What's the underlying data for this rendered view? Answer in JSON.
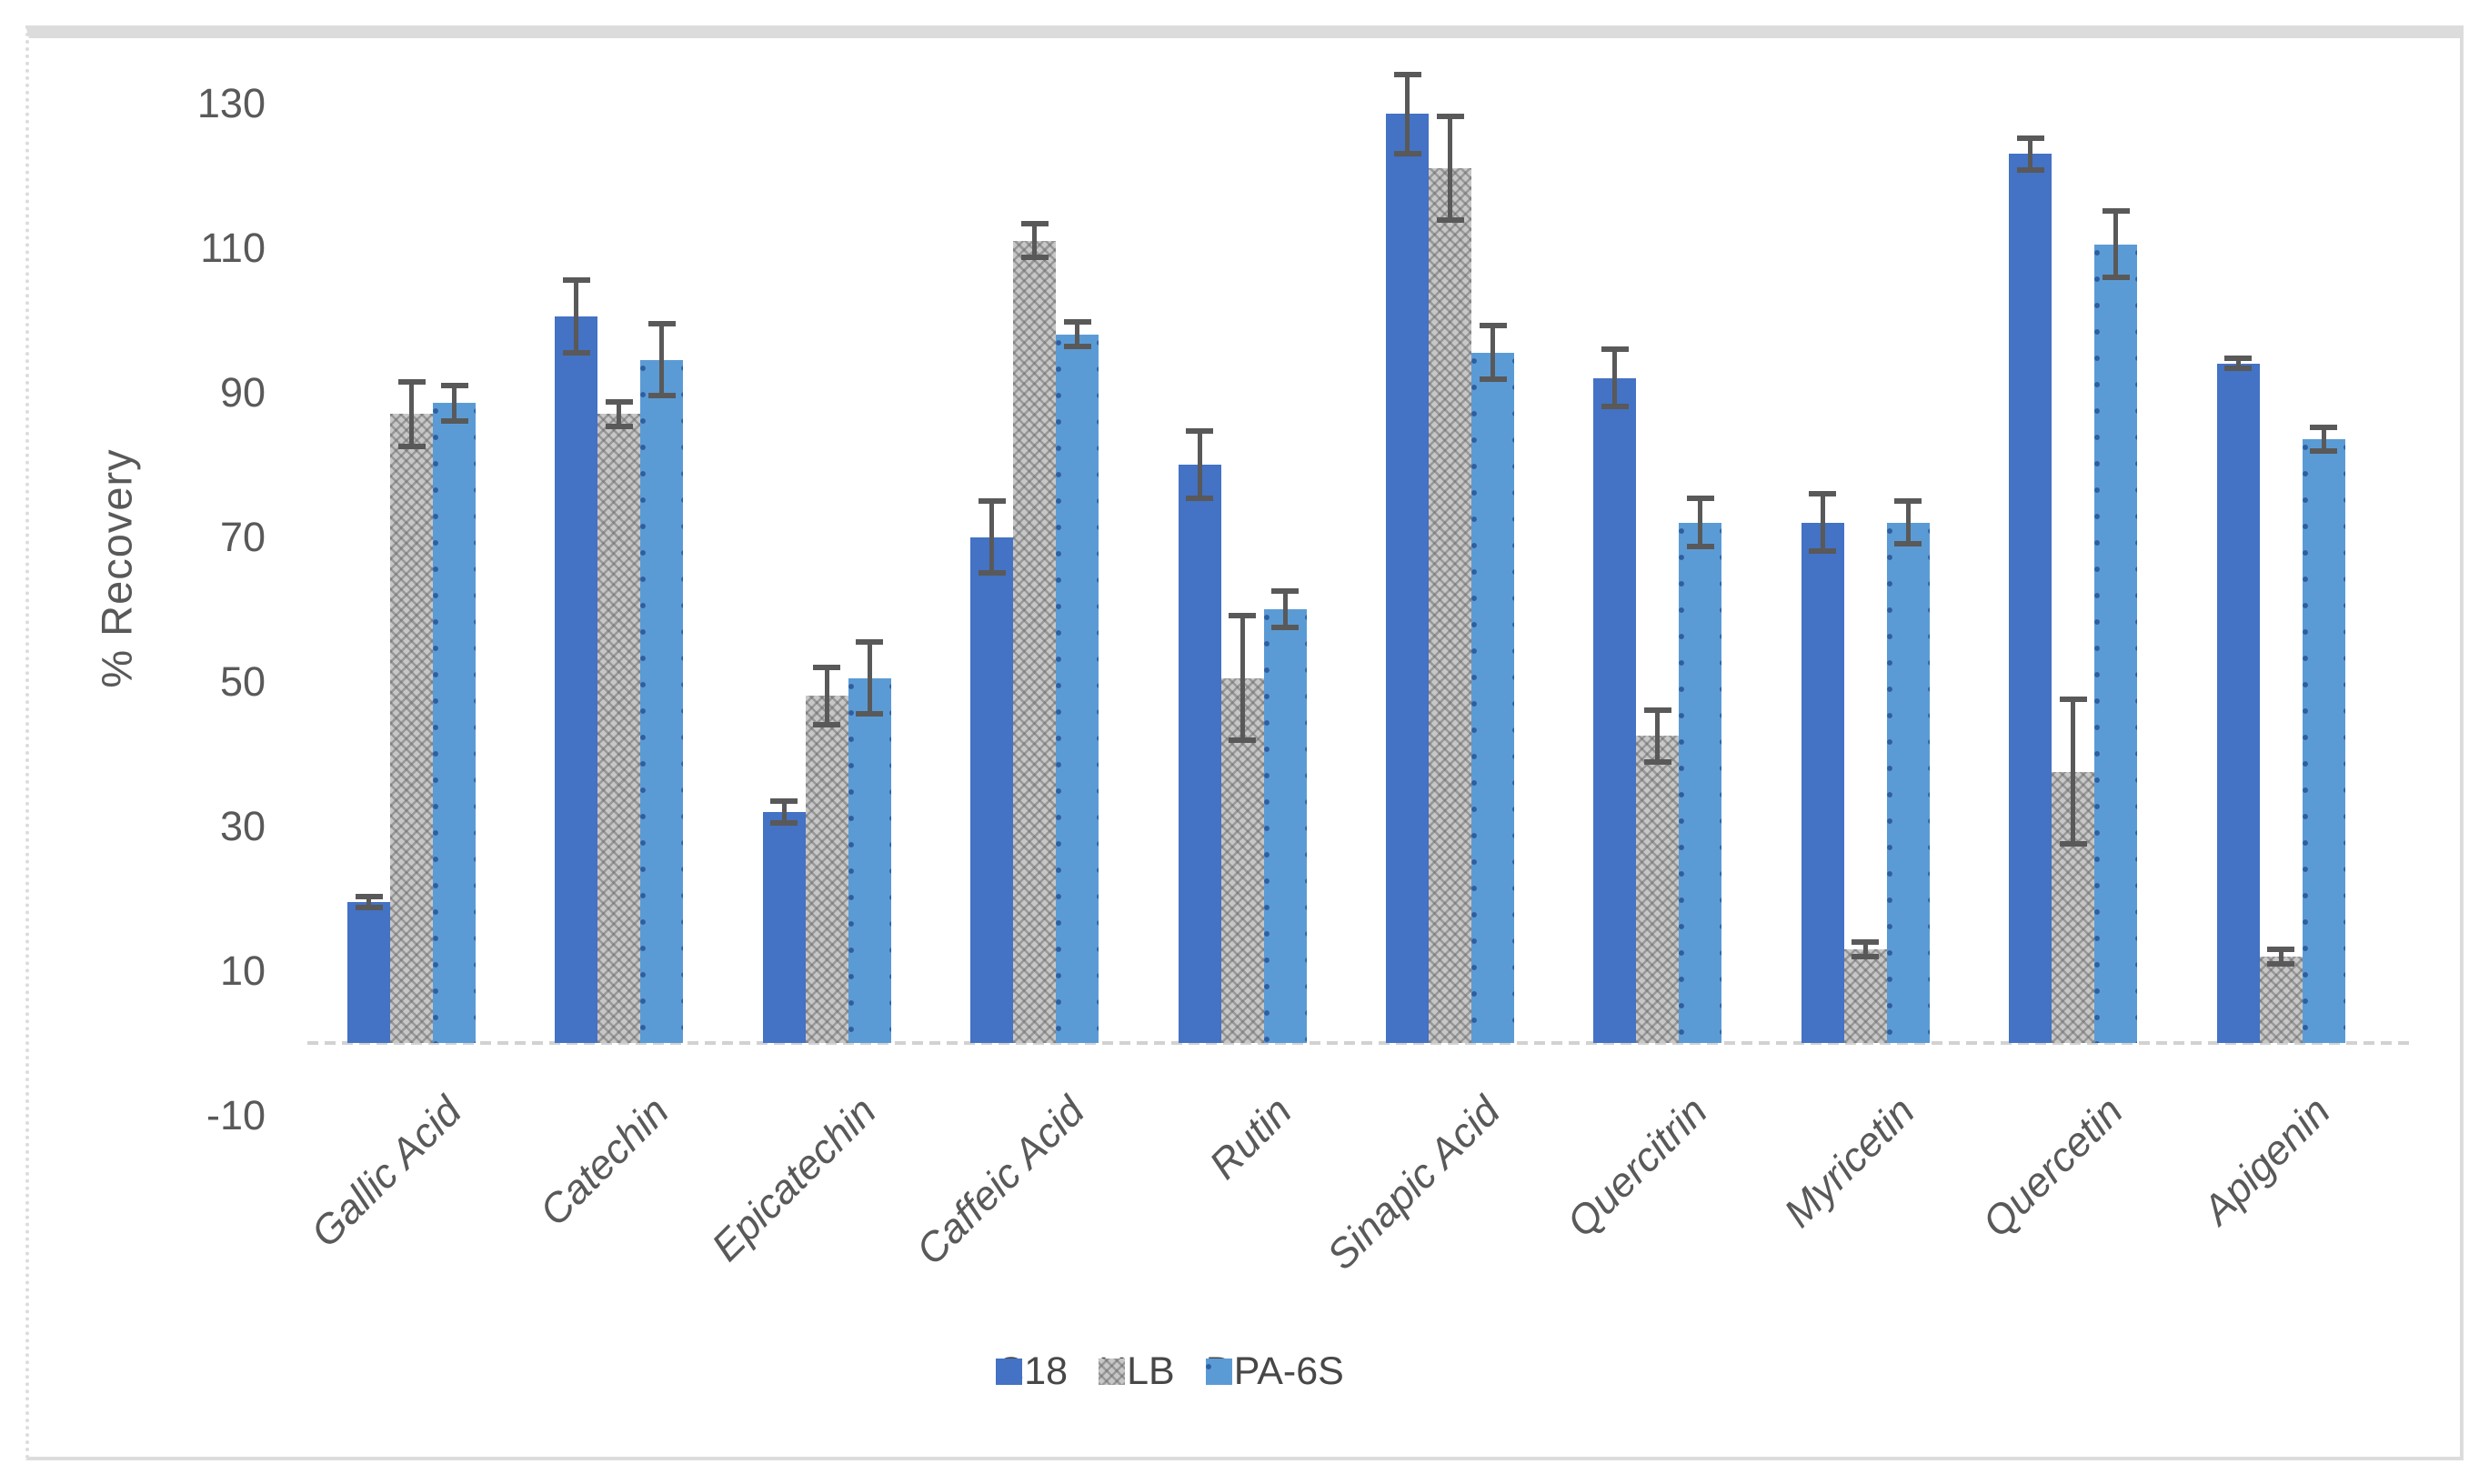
{
  "chart_data": {
    "type": "bar",
    "title": "",
    "xlabel": "",
    "ylabel": "% Recovery",
    "ylim": [
      -10,
      135
    ],
    "yticks": [
      130,
      110,
      90,
      70,
      50,
      30,
      10,
      -10
    ],
    "grid": false,
    "legend_position": "bottom-center",
    "bar_layout": "grouped-3-series-with-error-bars",
    "categories": [
      "Gallic Acid",
      "Catechin",
      "Epicatechin",
      "Caffeic Acid",
      "Rutin",
      "Sinapic Acid",
      "Quercitrin",
      "Myricetin",
      "Quercetin",
      "Apigenin"
    ],
    "series": [
      {
        "name": "C18",
        "fill": "solid",
        "color": "#4472C4",
        "values": [
          19.5,
          100.5,
          32,
          70,
          80,
          128.5,
          92,
          72,
          123,
          94
        ],
        "errors": [
          0.7,
          5,
          1.5,
          5,
          4.6,
          5.5,
          4,
          4,
          2.2,
          0.7
        ]
      },
      {
        "name": "HLB",
        "fill": "checker-pattern",
        "color": "#C7C7C7",
        "pattern_color": "#8F8F8F",
        "values": [
          87,
          87,
          48,
          111,
          50.5,
          121,
          42.5,
          13,
          37.5,
          12
        ],
        "errors": [
          4.5,
          1.7,
          4,
          2.3,
          8.6,
          7.2,
          3.6,
          1,
          10,
          1
        ]
      },
      {
        "name": "DPA-6S",
        "fill": "dot-pattern",
        "color": "#5B9BD5",
        "pattern_color": "#2F5E9E",
        "values": [
          88.5,
          94.5,
          50.5,
          98,
          60,
          95.5,
          72,
          72,
          110.5,
          83.5
        ],
        "errors": [
          2.5,
          5,
          5,
          1.7,
          2.5,
          3.7,
          3.3,
          3,
          4.6,
          1.6
        ]
      }
    ],
    "error_bar_color": "#595959",
    "axis_text_color": "#595959",
    "axis_line_color": "#D2D2D2"
  }
}
